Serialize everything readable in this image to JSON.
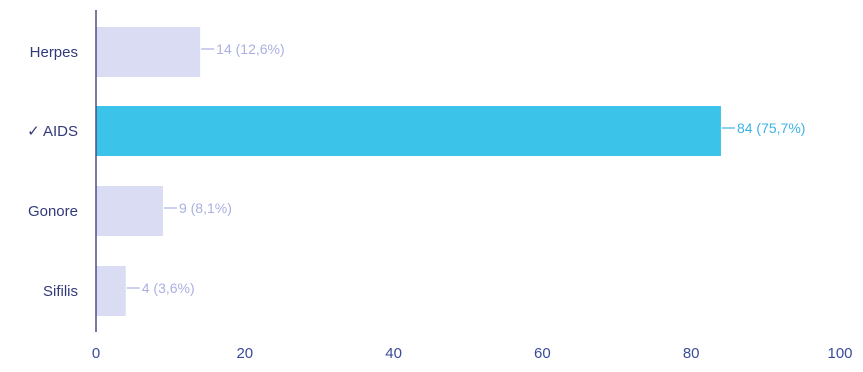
{
  "chart_data": {
    "type": "bar",
    "orientation": "horizontal",
    "categories": [
      "Herpes",
      "AIDS",
      "Gonore",
      "Sifilis"
    ],
    "category_labels": [
      "Herpes",
      "✓ AIDS",
      "Gonore",
      "Sifilis"
    ],
    "values": [
      14,
      84,
      9,
      4
    ],
    "data_labels": [
      "14 (12,6%)",
      "84 (75,7%)",
      "9 (8,1%)",
      "4 (3,6%)"
    ],
    "highlighted_index": 1,
    "xlim": [
      0,
      100
    ],
    "xticks": [
      0,
      20,
      40,
      60,
      80,
      100
    ],
    "xtick_labels": [
      "0",
      "20",
      "40",
      "60",
      "80",
      "100"
    ],
    "grid": false,
    "colors": {
      "bar_default": "#dadcf4",
      "bar_highlight": "#3cc3ea",
      "label_default": "#aab0e2",
      "label_highlight": "#3cb3e6",
      "axis": "#4a5080"
    }
  }
}
